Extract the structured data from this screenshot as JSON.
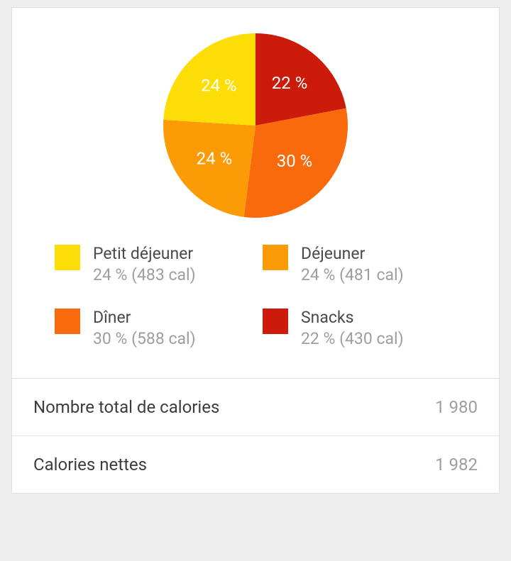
{
  "chart": {
    "type": "pie",
    "radius": 130,
    "label_fontsize": 24,
    "label_color": "#ffffff",
    "segments": [
      {
        "key": "snacks",
        "percent": 22,
        "label": "22 %",
        "color": "#cc1b0a"
      },
      {
        "key": "diner",
        "percent": 30,
        "label": "30 %",
        "color": "#f86a0c"
      },
      {
        "key": "dejeuner",
        "percent": 24,
        "label": "24 %",
        "color": "#fb9c06"
      },
      {
        "key": "petitdej",
        "percent": 24,
        "label": "24 %",
        "color": "#fcdd05"
      }
    ]
  },
  "legend": {
    "items": [
      {
        "key": "petitdej",
        "label": "Petit déjeuner",
        "detail": "24 % (483 cal)",
        "color": "#fcdd05"
      },
      {
        "key": "dejeuner",
        "label": "Déjeuner",
        "detail": "24 % (481 cal)",
        "color": "#fb9c06"
      },
      {
        "key": "diner",
        "label": "Dîner",
        "detail": "30 % (588 cal)",
        "color": "#f86a0c"
      },
      {
        "key": "snacks",
        "label": "Snacks",
        "detail": "22 % (430 cal)",
        "color": "#cc1b0a"
      }
    ]
  },
  "totals": {
    "total_label": "Nombre total de calories",
    "total_value": "1 980",
    "net_label": "Calories nettes",
    "net_value": "1 982"
  }
}
